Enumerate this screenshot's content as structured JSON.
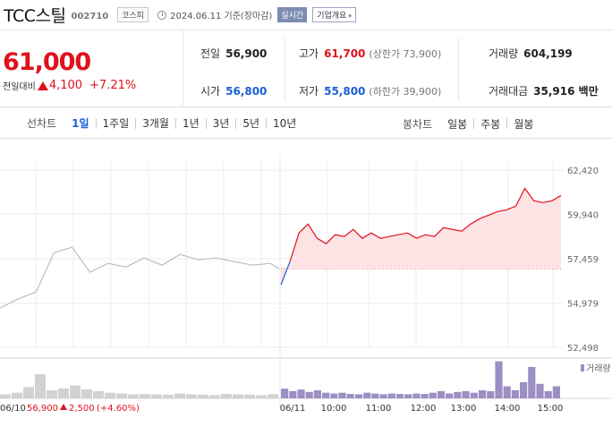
{
  "header": {
    "name": "TCC스틸",
    "code": "002710",
    "market": "코스피",
    "date": "2024.06.11 기준(장마감)",
    "realtime_label": "실시간",
    "company_label": "기업개요",
    "company_chevron": "▾"
  },
  "summary": {
    "price": "61,000",
    "change_label": "전일대비",
    "change_value": "4,100",
    "change_pct": "+7.21%",
    "prev_close_label": "전일",
    "prev_close": "56,900",
    "high_label": "고가",
    "high": "61,700",
    "upper_limit": "(상한가 73,900)",
    "volume_label": "거래량",
    "volume": "604,199",
    "open_label": "시가",
    "open": "56,800",
    "low_label": "저가",
    "low": "55,800",
    "lower_limit": "(하한가 39,900)",
    "amount_label": "거래대금",
    "amount": "35,916 백만"
  },
  "toolbar": {
    "line_label": "선차트",
    "line_tabs": [
      "1일",
      "1주일",
      "3개월",
      "1년",
      "3년",
      "5년",
      "10년"
    ],
    "active_tab": "1일",
    "candle_label": "봉차트",
    "candle_tabs": [
      "일봉",
      "주봉",
      "월봉"
    ]
  },
  "colors": {
    "up": "#e0111c",
    "down": "#1a5fd6",
    "volume": "#9c8fc4",
    "fill": "#fde3e4"
  },
  "chart_data": {
    "type": "line",
    "y_ticks": [
      "62,420",
      "59,940",
      "57,459",
      "54,979",
      "52,498"
    ],
    "ylim": [
      52498,
      62420
    ],
    "reference_price": 56900,
    "x_ticks": [
      "06/11",
      "10:00",
      "11:00",
      "12:00",
      "13:00",
      "14:00",
      "15:00"
    ],
    "x_left_label": "06/10",
    "prev_day_series": {
      "name": "06/10",
      "x": [
        0,
        20,
        40,
        60,
        80,
        100,
        120,
        140,
        160,
        180,
        200,
        220,
        240,
        260,
        280,
        300,
        310
      ],
      "values": [
        54700,
        55200,
        55600,
        57800,
        58100,
        56700,
        57200,
        57000,
        57500,
        57100,
        57700,
        57400,
        57500,
        57300,
        57100,
        57200,
        56900
      ]
    },
    "today_series": {
      "name": "06/11",
      "x": [
        0,
        10,
        20,
        30,
        40,
        50,
        60,
        70,
        80,
        90,
        100,
        110,
        120,
        130,
        140,
        150,
        160,
        170,
        180,
        190,
        200,
        210,
        220,
        230,
        240,
        250,
        260,
        270,
        280,
        290,
        300,
        310
      ],
      "values": [
        56000,
        57300,
        58900,
        59400,
        58600,
        58300,
        58800,
        58700,
        59100,
        58600,
        58900,
        58600,
        58700,
        58800,
        58900,
        58600,
        58800,
        58700,
        59200,
        59100,
        59000,
        59400,
        59700,
        59900,
        60100,
        60200,
        60400,
        61400,
        60700,
        60600,
        60700,
        61000
      ]
    },
    "volume_label": "거래량",
    "volume_scale_max": 100,
    "volume_prev": [
      10,
      14,
      28,
      60,
      20,
      25,
      32,
      22,
      18,
      14,
      12,
      10,
      11,
      10,
      9,
      12,
      10,
      9,
      8,
      11,
      10,
      9,
      8,
      10
    ],
    "volume_today": [
      24,
      18,
      22,
      16,
      20,
      14,
      12,
      14,
      11,
      10,
      14,
      12,
      10,
      12,
      11,
      10,
      12,
      11,
      14,
      18,
      12,
      16,
      18,
      14,
      20,
      18,
      92,
      30,
      20,
      40,
      78,
      36,
      18,
      30
    ],
    "footer": {
      "date": "06/10",
      "price": "56,900",
      "change": "2,500",
      "pct": "(+4.60%)"
    }
  }
}
